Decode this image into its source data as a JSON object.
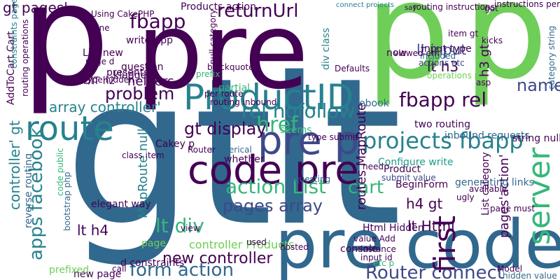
{
  "words": [
    "gt",
    "lt",
    "pre",
    "p",
    "p",
    "p",
    "pre code",
    "code pre",
    "ProductID",
    "pre p",
    "route",
    "server",
    "first",
    "problem",
    "fbapp",
    "returnUrl",
    "gt pages'",
    "projects fbapp",
    "fbapp rel",
    "rel nofollow",
    "name",
    "Router connect",
    "form action",
    "action List",
    "pages array",
    "lt div",
    "new controller",
    "href",
    "cart",
    "apps facebook",
    "array controller'",
    "gt display'",
    "lt input",
    "lt h3",
    "h3 gt",
    "h4 gt",
    "lt h4",
    "lt Html",
    "helpers",
    "controller Products",
    "MapRoute null",
    "routes MapRoute",
    "pages'action'",
    "Products action",
    "routing instructions",
    "instructions per",
    "connect projects",
    "item gt",
    "kicks",
    "EDIT h2",
    "type hidden",
    "question",
    "kludge",
    "controller' gt",
    "Html Hidden",
    "console",
    "Defaults",
    "Facebook",
    "inbound requests",
    "Configure write",
    "two routing",
    "value Add",
    "hosted",
    "elegant way",
    "new page",
    "prefixed",
    "call",
    "page",
    "Cakey p",
    "class item",
    "string null",
    "category string",
    "page must",
    "operations p",
    "input type",
    "actions etc",
    "included",
    "viewed em",
    "partial",
    "prefix",
    "Product",
    "submit value",
    "need",
    "BeginForm",
    "generating links",
    "ugly",
    "available",
    "List category",
    "Model",
    "hidden value",
    "instance",
    "etc p",
    "input id",
    "used",
    "whether",
    "requesting",
    "numerical",
    "seems",
    "type submit",
    "Router",
    "bootstrap php",
    "code public",
    "reverse routing",
    "AddToCart Cart",
    "constraints page",
    "routing operations",
    "Using CakePHP",
    "write App",
    "List new",
    "line",
    "page d",
    "presents",
    "per route",
    "routing inbound",
    "blockquote",
    "null category",
    "div class",
    "now",
    "say",
    "got",
    "asp",
    "d constraints",
    "view"
  ]
}
